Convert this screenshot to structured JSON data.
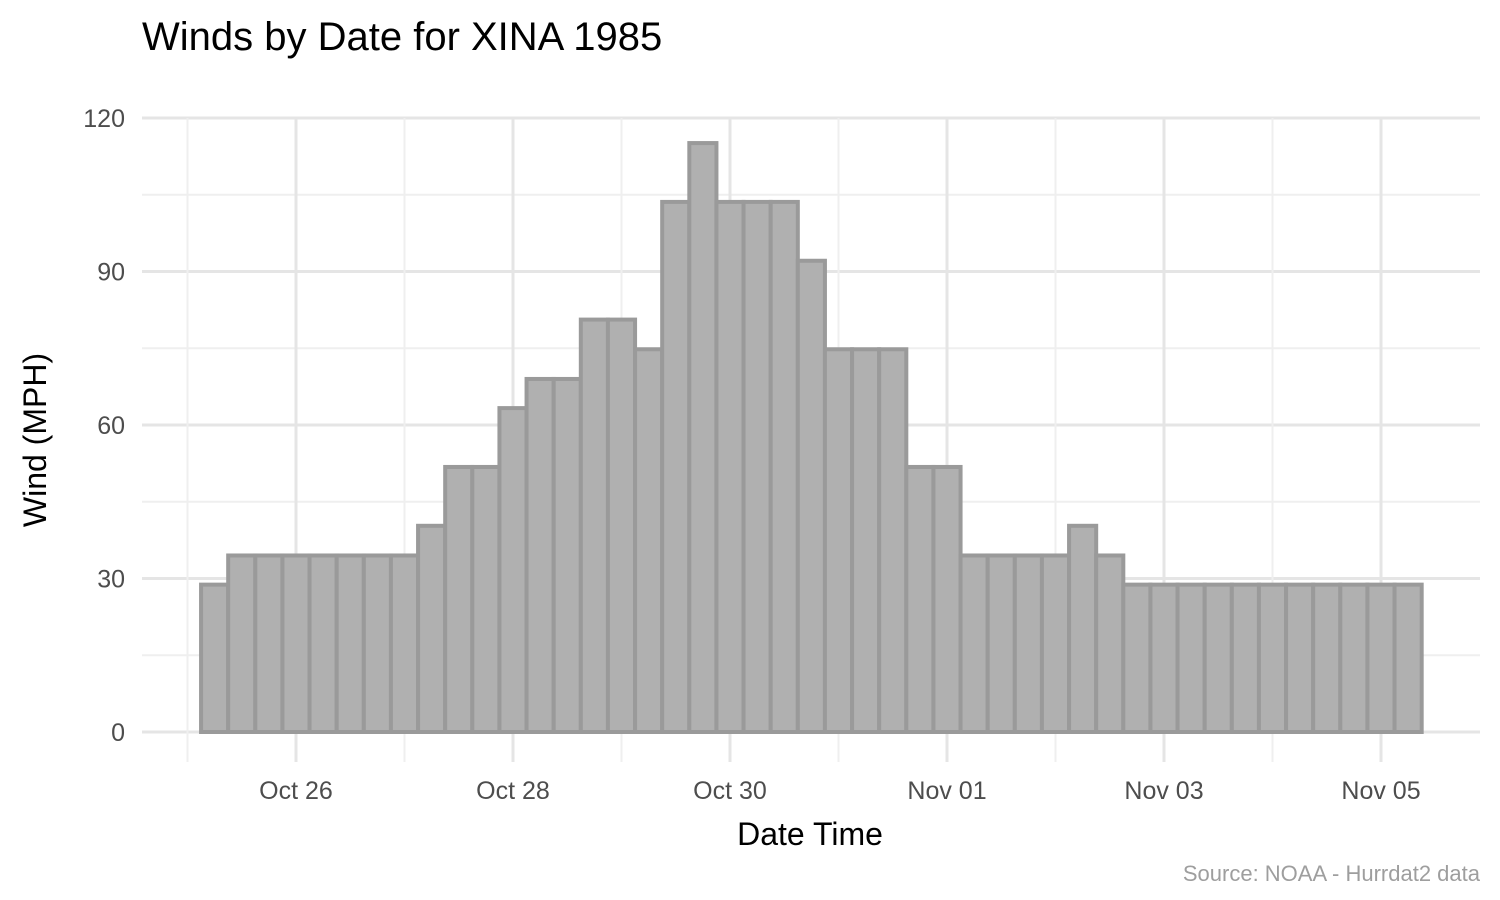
{
  "chart_data": {
    "type": "bar",
    "title": "Winds by Date for XINA 1985",
    "xlabel": "Date Time",
    "ylabel": "Wind (MPH)",
    "caption": "Source: NOAA - Hurrdat2 data",
    "ylim": [
      0,
      120
    ],
    "y_ticks": [
      0,
      30,
      60,
      90,
      120
    ],
    "x_ticks": [
      {
        "label": "Oct 26",
        "date": "1985-10-26"
      },
      {
        "label": "Oct 28",
        "date": "1985-10-28"
      },
      {
        "label": "Oct 30",
        "date": "1985-10-30"
      },
      {
        "label": "Nov 01",
        "date": "1985-11-01"
      },
      {
        "label": "Nov 03",
        "date": "1985-11-03"
      },
      {
        "label": "Nov 05",
        "date": "1985-11-05"
      }
    ],
    "x_interval_hours": 6,
    "x": [
      "1985-10-25 06:00",
      "1985-10-25 12:00",
      "1985-10-25 18:00",
      "1985-10-26 00:00",
      "1985-10-26 06:00",
      "1985-10-26 12:00",
      "1985-10-26 18:00",
      "1985-10-27 00:00",
      "1985-10-27 06:00",
      "1985-10-27 12:00",
      "1985-10-27 18:00",
      "1985-10-28 00:00",
      "1985-10-28 06:00",
      "1985-10-28 12:00",
      "1985-10-28 18:00",
      "1985-10-29 00:00",
      "1985-10-29 06:00",
      "1985-10-29 12:00",
      "1985-10-29 18:00",
      "1985-10-30 00:00",
      "1985-10-30 06:00",
      "1985-10-30 12:00",
      "1985-10-30 18:00",
      "1985-10-31 00:00",
      "1985-10-31 06:00",
      "1985-10-31 12:00",
      "1985-10-31 18:00",
      "1985-11-01 00:00",
      "1985-11-01 06:00",
      "1985-11-01 12:00",
      "1985-11-01 18:00",
      "1985-11-02 00:00",
      "1985-11-02 06:00",
      "1985-11-02 12:00",
      "1985-11-02 18:00",
      "1985-11-03 00:00",
      "1985-11-03 06:00",
      "1985-11-03 12:00",
      "1985-11-03 18:00",
      "1985-11-04 00:00",
      "1985-11-04 06:00",
      "1985-11-04 12:00",
      "1985-11-04 18:00",
      "1985-11-05 00:00",
      "1985-11-05 06:00"
    ],
    "values": [
      28.8,
      34.5,
      34.5,
      34.5,
      34.5,
      34.5,
      34.5,
      34.5,
      40.3,
      51.8,
      51.8,
      63.3,
      69.0,
      69.0,
      80.6,
      80.6,
      74.8,
      103.6,
      115.1,
      103.6,
      103.6,
      103.6,
      92.1,
      74.8,
      74.8,
      74.8,
      51.8,
      51.8,
      34.5,
      34.5,
      34.5,
      34.5,
      40.3,
      34.5,
      28.8,
      28.8,
      28.8,
      28.8,
      28.8,
      28.8,
      28.8,
      28.8,
      28.8,
      28.8,
      28.8
    ],
    "grid": true,
    "legend": "none",
    "colors": {
      "bar_fill": "#b0b0b0",
      "bar_outline": "#9a9a9a",
      "grid": "#e5e5e5"
    }
  }
}
